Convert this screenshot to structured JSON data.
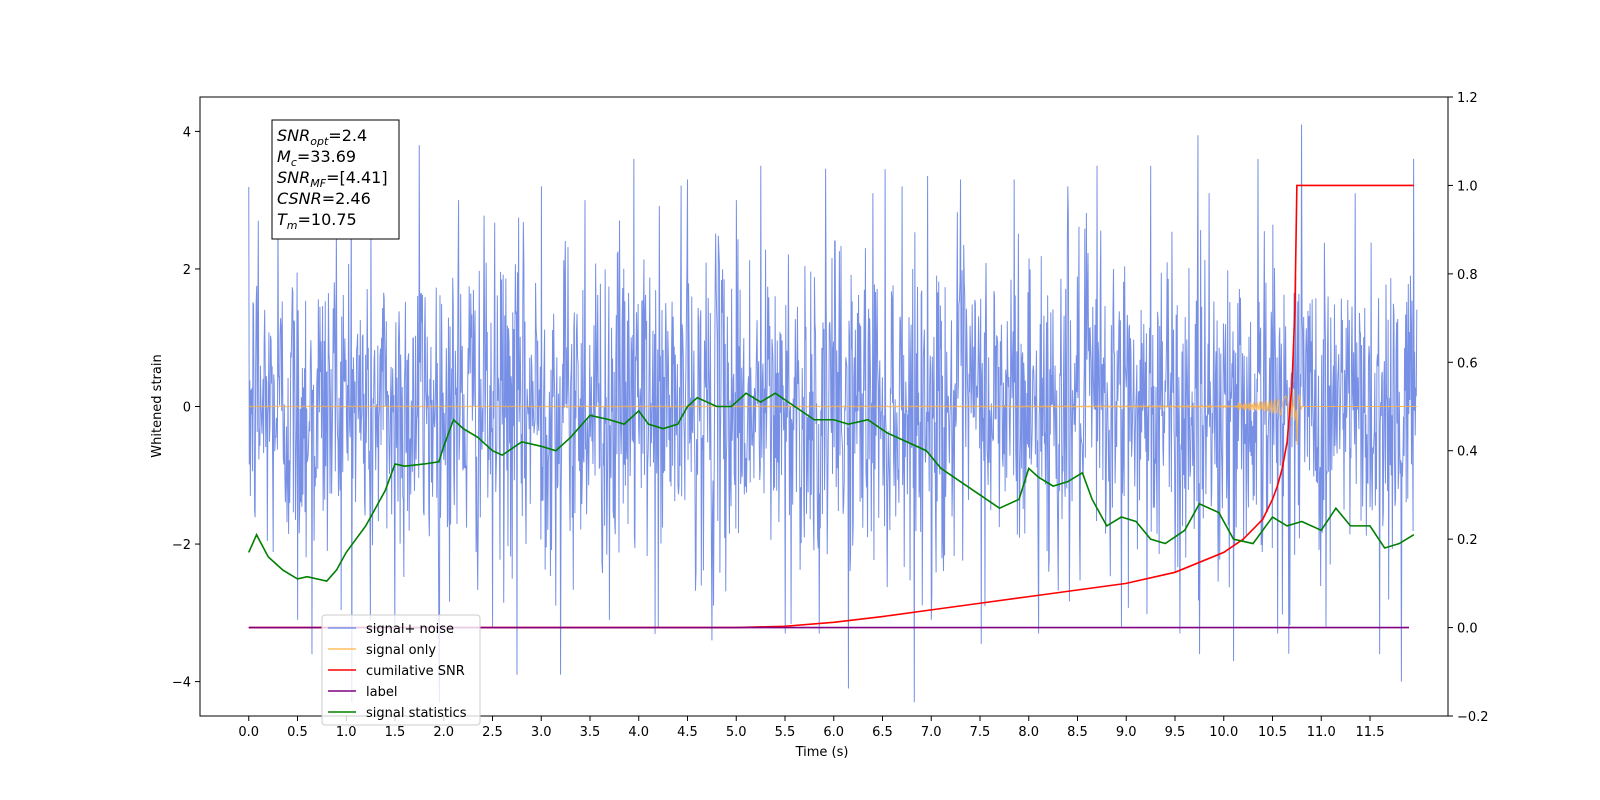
{
  "chart_data": {
    "type": "line",
    "title": "",
    "xlabel": "Time (s)",
    "ylabel": "Whitened strain",
    "y2label": "",
    "xlim": [
      -0.5,
      12.3
    ],
    "ylim": [
      -4.5,
      4.5
    ],
    "y2lim": [
      -0.2,
      1.2
    ],
    "grid": false,
    "legend_position": "lower-left",
    "x_ticks": [
      "0.0",
      "0.5",
      "1.0",
      "1.5",
      "2.0",
      "2.5",
      "3.0",
      "3.5",
      "4.0",
      "4.5",
      "5.0",
      "5.5",
      "6.0",
      "6.5",
      "7.0",
      "7.5",
      "8.0",
      "8.5",
      "9.0",
      "9.5",
      "10.0",
      "10.5",
      "11.0",
      "11.5"
    ],
    "y_ticks": [
      "−4",
      "−2",
      "0",
      "2",
      "4"
    ],
    "y2_ticks": [
      "−0.2",
      "0.0",
      "0.2",
      "0.4",
      "0.6",
      "0.8",
      "1.0",
      "1.2"
    ],
    "annotation": {
      "lines": [
        {
          "sym": "SNR",
          "sub": "opt",
          "value": "=2.4"
        },
        {
          "sym": "M",
          "sub": "c",
          "value": "=33.69"
        },
        {
          "sym": "SNR",
          "sub": "MF",
          "value": "=[4.41]"
        },
        {
          "sym": "CSNR",
          "sub": "",
          "value": "=2.46"
        },
        {
          "sym": "T",
          "sub": "m",
          "value": "=10.75"
        }
      ]
    },
    "series": [
      {
        "name": "signal+ noise",
        "color": "#6b87e4",
        "axis": "left",
        "description_range": [
          -3.3,
          3.3
        ],
        "spikes": [
          [
            0.1,
            2.7
          ],
          [
            0.3,
            2.9
          ],
          [
            0.5,
            -3.1
          ],
          [
            0.65,
            -3.6
          ],
          [
            0.9,
            2.6
          ],
          [
            1.05,
            3.2
          ],
          [
            1.25,
            -3.1
          ],
          [
            1.5,
            -3.2
          ],
          [
            1.75,
            3.8
          ],
          [
            1.95,
            -3.4
          ],
          [
            2.15,
            3.0
          ],
          [
            2.5,
            -3.2
          ],
          [
            2.75,
            -3.9
          ],
          [
            3.0,
            3.2
          ],
          [
            3.2,
            -3.9
          ],
          [
            3.45,
            3.0
          ],
          [
            3.7,
            -3.1
          ],
          [
            3.95,
            3.6
          ],
          [
            4.2,
            -3.2
          ],
          [
            4.5,
            3.3
          ],
          [
            4.75,
            -3.4
          ],
          [
            5.0,
            3.0
          ],
          [
            5.25,
            3.5
          ],
          [
            5.5,
            -3.3
          ],
          [
            5.85,
            -3.3
          ],
          [
            6.15,
            -4.1
          ],
          [
            6.4,
            3.1
          ],
          [
            6.7,
            3.2
          ],
          [
            7.0,
            -3.1
          ],
          [
            7.3,
            3.3
          ],
          [
            7.55,
            -2.9
          ],
          [
            7.85,
            3.3
          ],
          [
            8.1,
            -3.3
          ],
          [
            8.4,
            3.2
          ],
          [
            8.7,
            3.5
          ],
          [
            8.95,
            -3.2
          ],
          [
            9.25,
            3.5
          ],
          [
            9.55,
            -3.3
          ],
          [
            9.75,
            -3.6
          ],
          [
            9.85,
            3.1
          ],
          [
            10.1,
            -3.7
          ],
          [
            10.35,
            3.6
          ],
          [
            10.55,
            -3.3
          ],
          [
            10.8,
            4.1
          ],
          [
            11.05,
            -3.2
          ],
          [
            11.35,
            3.1
          ],
          [
            11.6,
            -3.6
          ],
          [
            11.82,
            -4.0
          ],
          [
            11.95,
            3.6
          ]
        ]
      },
      {
        "name": "signal only",
        "color": "#ffb347",
        "axis": "left",
        "merger_time": 10.75,
        "peak_amplitude": 0.65
      },
      {
        "name": "cumilative SNR",
        "color": "#ff0000",
        "axis": "right",
        "x": [
          0.0,
          5.0,
          5.5,
          6.0,
          6.5,
          7.0,
          7.5,
          8.0,
          8.5,
          9.0,
          9.5,
          10.0,
          10.2,
          10.4,
          10.5,
          10.55,
          10.6,
          10.65,
          10.7,
          10.73,
          10.75,
          11.95
        ],
        "y": [
          0.0,
          0.0,
          0.003,
          0.012,
          0.025,
          0.04,
          0.055,
          0.07,
          0.085,
          0.1,
          0.125,
          0.17,
          0.2,
          0.245,
          0.29,
          0.32,
          0.36,
          0.42,
          0.55,
          0.72,
          1.0,
          1.0
        ]
      },
      {
        "name": "label",
        "color": "#800080",
        "axis": "right",
        "x": [
          0.0,
          11.9
        ],
        "y": [
          0.0,
          0.0
        ]
      },
      {
        "name": "signal statistics",
        "color": "#008000",
        "axis": "right",
        "x": [
          0.0,
          0.08,
          0.2,
          0.35,
          0.5,
          0.6,
          0.8,
          0.9,
          1.0,
          1.2,
          1.4,
          1.5,
          1.6,
          1.8,
          1.95,
          2.0,
          2.1,
          2.2,
          2.35,
          2.5,
          2.6,
          2.8,
          3.0,
          3.15,
          3.3,
          3.5,
          3.7,
          3.85,
          4.0,
          4.1,
          4.25,
          4.4,
          4.5,
          4.6,
          4.8,
          4.95,
          5.1,
          5.25,
          5.4,
          5.6,
          5.8,
          6.0,
          6.15,
          6.35,
          6.55,
          6.75,
          6.95,
          7.1,
          7.3,
          7.5,
          7.7,
          7.9,
          8.0,
          8.1,
          8.25,
          8.4,
          8.55,
          8.65,
          8.8,
          8.95,
          9.1,
          9.25,
          9.4,
          9.6,
          9.75,
          9.95,
          10.1,
          10.3,
          10.5,
          10.65,
          10.8,
          11.0,
          11.15,
          11.3,
          11.5,
          11.65,
          11.8,
          11.95
        ],
        "y": [
          0.17,
          0.21,
          0.16,
          0.13,
          0.11,
          0.115,
          0.105,
          0.13,
          0.17,
          0.23,
          0.31,
          0.37,
          0.365,
          0.37,
          0.375,
          0.41,
          0.47,
          0.45,
          0.43,
          0.4,
          0.39,
          0.42,
          0.41,
          0.4,
          0.43,
          0.48,
          0.47,
          0.46,
          0.49,
          0.46,
          0.45,
          0.46,
          0.5,
          0.52,
          0.5,
          0.5,
          0.53,
          0.51,
          0.53,
          0.5,
          0.47,
          0.47,
          0.46,
          0.47,
          0.44,
          0.42,
          0.4,
          0.36,
          0.33,
          0.3,
          0.27,
          0.29,
          0.36,
          0.34,
          0.32,
          0.33,
          0.35,
          0.29,
          0.23,
          0.25,
          0.24,
          0.2,
          0.19,
          0.22,
          0.28,
          0.26,
          0.2,
          0.19,
          0.25,
          0.23,
          0.24,
          0.22,
          0.27,
          0.23,
          0.23,
          0.18,
          0.19,
          0.21
        ]
      }
    ]
  }
}
